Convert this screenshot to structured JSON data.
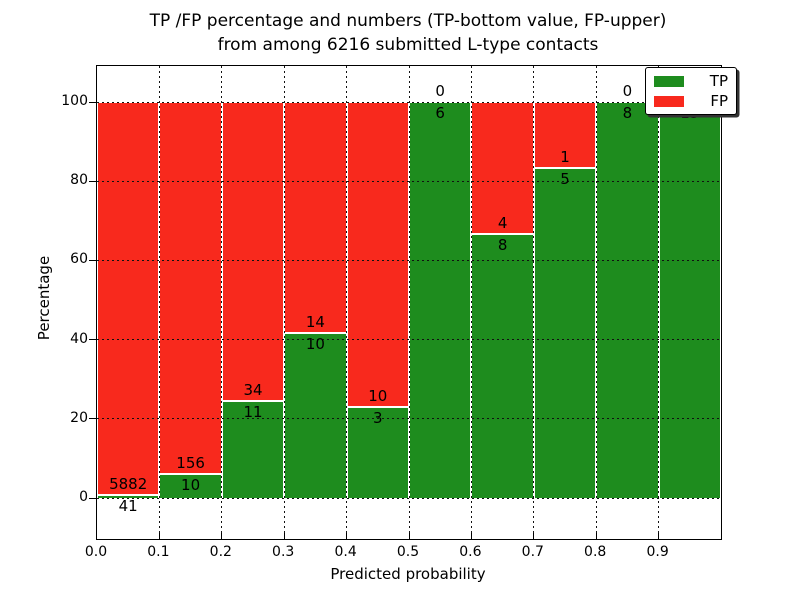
{
  "figure": {
    "title_line1": "TP /FP percentage and numbers (TP-bottom value, FP-upper)",
    "title_line2": "from among 6216 submitted L-type contacts",
    "xlabel": "Predicted probability",
    "ylabel": "Percentage"
  },
  "legend": {
    "items": [
      {
        "label": "TP",
        "color": "#1e8c1e"
      },
      {
        "label": "FP",
        "color": "#f8291d"
      }
    ]
  },
  "colors": {
    "tp": "#1e8c1e",
    "fp": "#f8291d",
    "grid": "#111111",
    "frame": "#000000"
  },
  "chart_data": {
    "type": "bar",
    "stacked": true,
    "normalized": "percent-of-bin",
    "title": "TP /FP percentage and numbers (TP-bottom value, FP-upper) from among 6216 submitted L-type contacts",
    "xlabel": "Predicted probability",
    "ylabel": "Percentage",
    "total_submitted": 6216,
    "bins": [
      "0.0-0.1",
      "0.1-0.2",
      "0.2-0.3",
      "0.3-0.4",
      "0.4-0.5",
      "0.5-0.6",
      "0.6-0.7",
      "0.7-0.8",
      "0.8-0.9",
      "0.9-1.0"
    ],
    "series": [
      {
        "name": "TP",
        "color": "#1e8c1e",
        "values": [
          41,
          10,
          11,
          10,
          3,
          6,
          8,
          5,
          8,
          13
        ]
      },
      {
        "name": "FP",
        "color": "#f8291d",
        "values": [
          5882,
          156,
          34,
          14,
          10,
          0,
          4,
          1,
          0,
          0
        ]
      }
    ],
    "tp_percent": [
      0.69,
      6.02,
      24.44,
      41.67,
      23.08,
      100.0,
      66.67,
      83.33,
      100.0,
      100.0
    ],
    "xticks": [
      "0.0",
      "0.1",
      "0.2",
      "0.3",
      "0.4",
      "0.5",
      "0.6",
      "0.7",
      "0.8",
      "0.9"
    ],
    "yticks": [
      0,
      20,
      40,
      60,
      80,
      100
    ],
    "xlim": [
      0.0,
      1.0
    ],
    "ylim": [
      -10.4,
      109.0
    ],
    "grid": "dotted",
    "legend_position": "upper-right",
    "bar_label_convention": "TP count below segment boundary, FP count above"
  }
}
